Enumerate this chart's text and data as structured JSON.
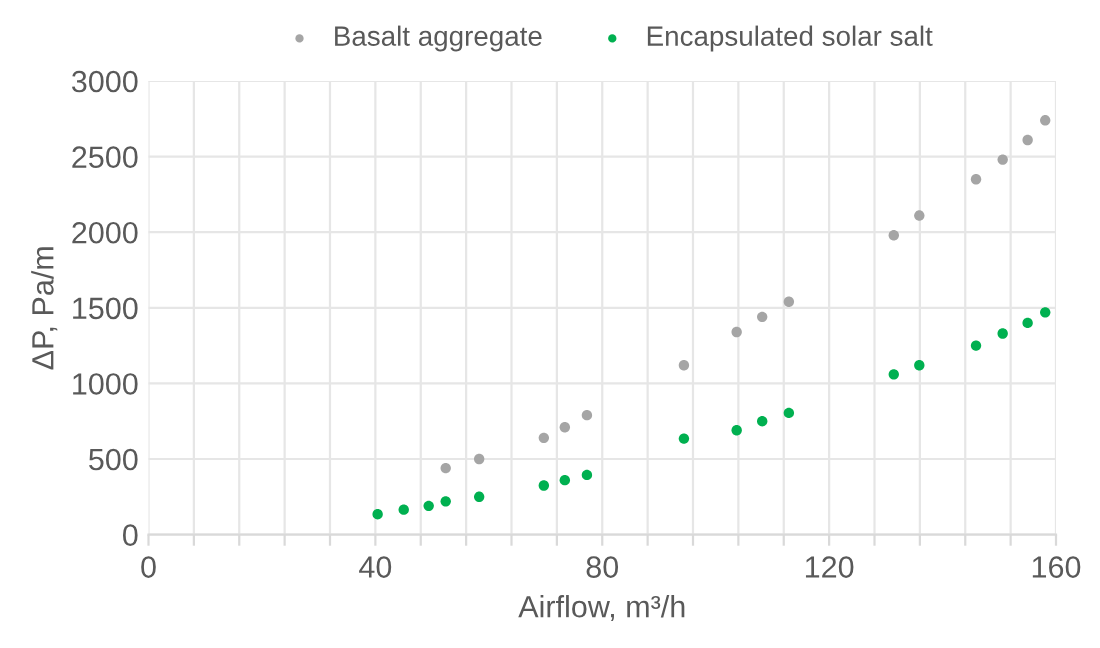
{
  "chart_data": {
    "type": "scatter",
    "xlabel": "Airflow, m³/h",
    "ylabel": "ΔP, Pa/m",
    "xlim": [
      0,
      160
    ],
    "xticks": [
      0,
      {
        "value": 8,
        "label": null
      },
      {
        "value": 16,
        "label": null
      },
      {
        "value": 24,
        "label": null
      },
      {
        "value": 32,
        "label": null
      },
      40,
      {
        "value": 48,
        "label": null
      },
      {
        "value": 56,
        "label": null
      },
      {
        "value": 64,
        "label": null
      },
      {
        "value": 72,
        "label": null
      },
      80,
      {
        "value": 88,
        "label": null
      },
      {
        "value": 96,
        "label": null
      },
      {
        "value": 104,
        "label": null
      },
      {
        "value": 112,
        "label": null
      },
      120,
      {
        "value": 128,
        "label": null
      },
      {
        "value": 136,
        "label": null
      },
      {
        "value": 144,
        "label": null
      },
      {
        "value": 152,
        "label": null
      },
      160
    ],
    "ylim": [
      0,
      3000
    ],
    "yticks": [
      0,
      500,
      1000,
      1500,
      2000,
      2500,
      3000
    ],
    "grid": true,
    "legend": "top",
    "marker": "circle",
    "series": [
      {
        "name": "Basalt aggregate",
        "color": "#a5a5a5",
        "x": [
          52.4,
          58.3,
          69.7,
          73.4,
          77.3,
          94.4,
          103.7,
          108.2,
          112.9,
          131.4,
          135.9,
          145.9,
          150.6,
          155.0,
          158.1
        ],
        "values": [
          440,
          500,
          640,
          710,
          790,
          1120,
          1340,
          1440,
          1540,
          1980,
          2110,
          2350,
          2480,
          2610,
          2740
        ]
      },
      {
        "name": "Encapsulated solar salt",
        "color": "#00b050",
        "x": [
          40.4,
          45.0,
          49.4,
          52.4,
          58.3,
          69.7,
          73.4,
          77.3,
          94.4,
          103.7,
          108.2,
          112.9,
          131.4,
          135.9,
          145.9,
          150.6,
          155.0,
          158.1
        ],
        "values": [
          135,
          165,
          190,
          220,
          250,
          325,
          360,
          395,
          635,
          690,
          750,
          805,
          1060,
          1120,
          1250,
          1330,
          1400,
          1470
        ]
      }
    ]
  }
}
